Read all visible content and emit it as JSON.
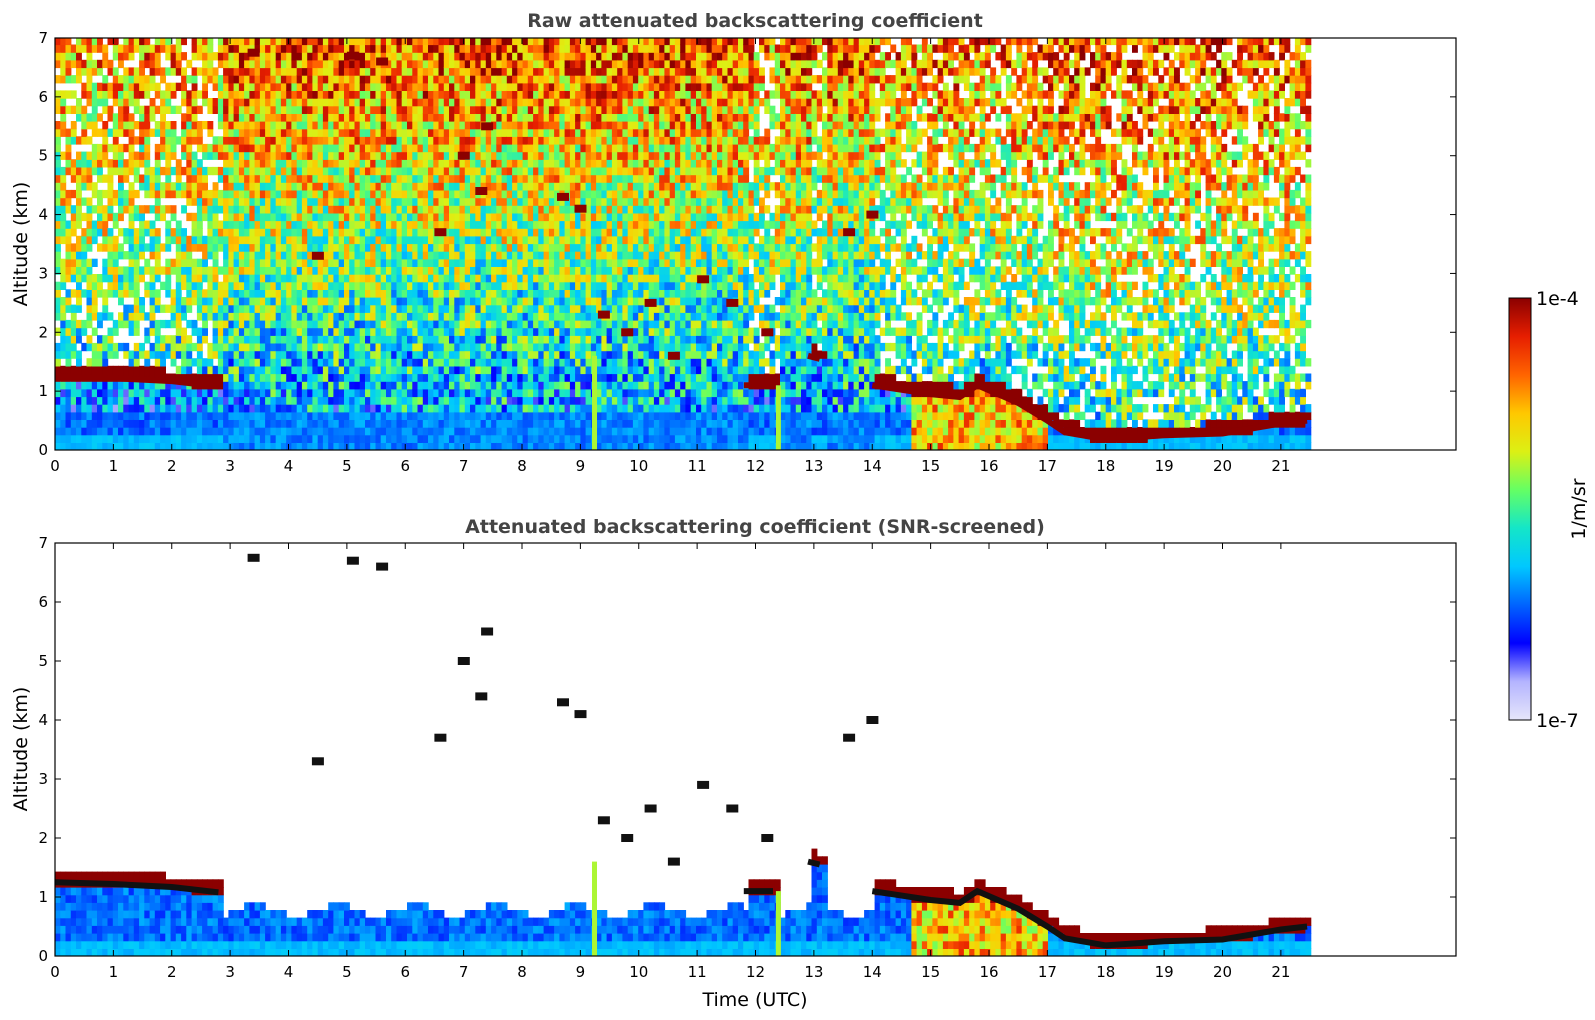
{
  "colors": {
    "cloud_layer": "#8b0000",
    "colormap": [
      "#e6e6fa",
      "#b4b4ff",
      "#0000ff",
      "#0064ff",
      "#00c8ff",
      "#14e6c8",
      "#64ff64",
      "#dcf014",
      "#ffc800",
      "#ff6400",
      "#e61e00",
      "#8b0000"
    ],
    "background": "#ffffff",
    "title_color": "#444444"
  },
  "colorbar": {
    "max_label": "1e-4",
    "min_label": "1e-7",
    "unit_label": "1/m/sr",
    "scale": "log"
  },
  "chart_data": [
    {
      "type": "heatmap",
      "title": "Raw attenuated backscattering coefficient",
      "xlabel": "",
      "ylabel": "Altitude (km)",
      "xlim": [
        0,
        24
      ],
      "ylim": [
        0,
        7
      ],
      "xticks": [
        "0",
        "1",
        "2",
        "3",
        "4",
        "5",
        "6",
        "7",
        "8",
        "9",
        "10",
        "11",
        "12",
        "13",
        "14",
        "15",
        "16",
        "17",
        "18",
        "19",
        "20",
        "21"
      ],
      "yticks": [
        "0",
        "1",
        "2",
        "3",
        "4",
        "5",
        "6",
        "7"
      ],
      "data_extent_hours": 21.45,
      "cloud_base_km": [
        {
          "t": 0.0,
          "z": 1.25
        },
        {
          "t": 1.0,
          "z": 1.22
        },
        {
          "t": 2.0,
          "z": 1.17
        },
        {
          "t": 2.8,
          "z": 1.08
        },
        {
          "t": 11.8,
          "z": 1.1
        },
        {
          "t": 12.3,
          "z": 1.1
        },
        {
          "t": 12.9,
          "z": 1.6
        },
        {
          "t": 13.1,
          "z": 1.55
        },
        {
          "t": 14.0,
          "z": 1.1
        },
        {
          "t": 15.0,
          "z": 0.95
        },
        {
          "t": 15.5,
          "z": 0.9
        },
        {
          "t": 15.8,
          "z": 1.1
        },
        {
          "t": 16.5,
          "z": 0.8
        },
        {
          "t": 17.0,
          "z": 0.5
        },
        {
          "t": 17.3,
          "z": 0.3
        },
        {
          "t": 18.0,
          "z": 0.18
        },
        {
          "t": 19.0,
          "z": 0.25
        },
        {
          "t": 20.0,
          "z": 0.28
        },
        {
          "t": 21.0,
          "z": 0.45
        },
        {
          "t": 21.45,
          "z": 0.5
        }
      ],
      "elevated_clouds": [
        {
          "t": 3.3,
          "z": 6.75
        },
        {
          "t": 4.4,
          "z": 3.3
        },
        {
          "t": 5.0,
          "z": 6.7
        },
        {
          "t": 5.5,
          "z": 6.6
        },
        {
          "t": 6.5,
          "z": 3.7
        },
        {
          "t": 6.9,
          "z": 5.0
        },
        {
          "t": 7.3,
          "z": 5.5
        },
        {
          "t": 7.2,
          "z": 4.4
        },
        {
          "t": 8.6,
          "z": 4.3
        },
        {
          "t": 8.9,
          "z": 4.1
        },
        {
          "t": 9.3,
          "z": 2.3
        },
        {
          "t": 9.7,
          "z": 2.0
        },
        {
          "t": 10.1,
          "z": 2.5
        },
        {
          "t": 10.5,
          "z": 1.6
        },
        {
          "t": 11.0,
          "z": 2.9
        },
        {
          "t": 11.5,
          "z": 2.5
        },
        {
          "t": 12.1,
          "z": 2.0
        },
        {
          "t": 13.5,
          "z": 3.7
        },
        {
          "t": 13.9,
          "z": 4.0
        }
      ],
      "screened": false
    },
    {
      "type": "heatmap",
      "title": "Attenuated backscattering coefficient (SNR-screened)",
      "xlabel": "Time (UTC)",
      "ylabel": "Altitude (km)",
      "xlim": [
        0,
        24
      ],
      "ylim": [
        0,
        7
      ],
      "xticks": [
        "0",
        "1",
        "2",
        "3",
        "4",
        "5",
        "6",
        "7",
        "8",
        "9",
        "10",
        "11",
        "12",
        "13",
        "14",
        "15",
        "16",
        "17",
        "18",
        "19",
        "20",
        "21"
      ],
      "yticks": [
        "0",
        "1",
        "2",
        "3",
        "4",
        "5",
        "6",
        "7"
      ],
      "data_extent_hours": 21.45,
      "screened": true
    }
  ]
}
